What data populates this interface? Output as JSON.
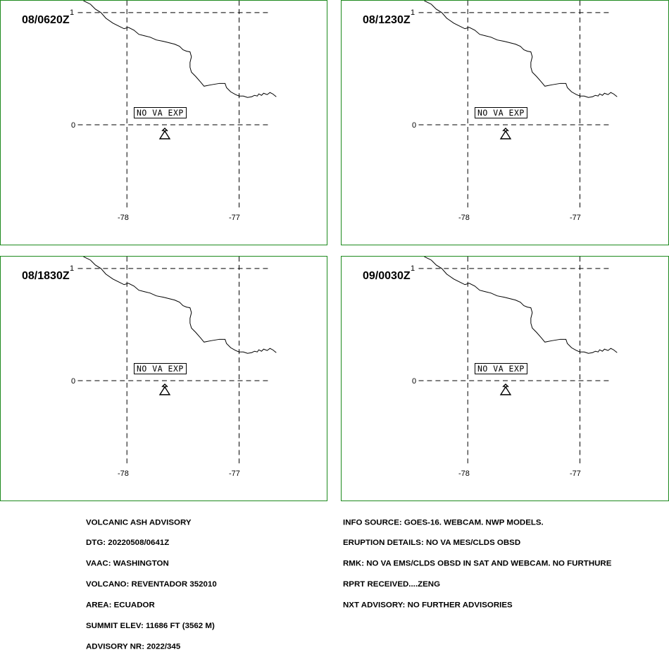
{
  "panels": [
    {
      "time": "08/0620Z",
      "label": "NO VA EXP"
    },
    {
      "time": "08/1230Z",
      "label": "NO VA EXP"
    },
    {
      "time": "08/1830Z",
      "label": "NO VA EXP"
    },
    {
      "time": "09/0030Z",
      "label": "NO VA EXP"
    }
  ],
  "grid": {
    "lat_top": "1",
    "lat_mid": "0",
    "lon_left": "-78",
    "lon_right": "-77"
  },
  "advisory_left": [
    "VOLCANIC ASH ADVISORY",
    "DTG: 20220508/0641Z",
    "VAAC: WASHINGTON",
    "VOLCANO: REVENTADOR 352010",
    "AREA: ECUADOR",
    "SUMMIT ELEV: 11686 FT (3562 M)",
    "ADVISORY NR: 2022/345"
  ],
  "advisory_right": [
    "INFO SOURCE: GOES-16. WEBCAM. NWP MODELS.",
    "ERUPTION DETAILS: NO VA MES/CLDS OBSD",
    "RMK: NO VA EMS/CLDS OBSD IN SAT AND WEBCAM. NO FURTHURE",
    "RPRT RECEIVED....ZENG",
    "NXT ADVISORY: NO FURTHER ADVISORIES"
  ],
  "icons": {
    "volcano": "volcano-icon"
  },
  "colors": {
    "panel_border": "#1e8a1e",
    "lines": "#000000",
    "background": "#ffffff"
  }
}
